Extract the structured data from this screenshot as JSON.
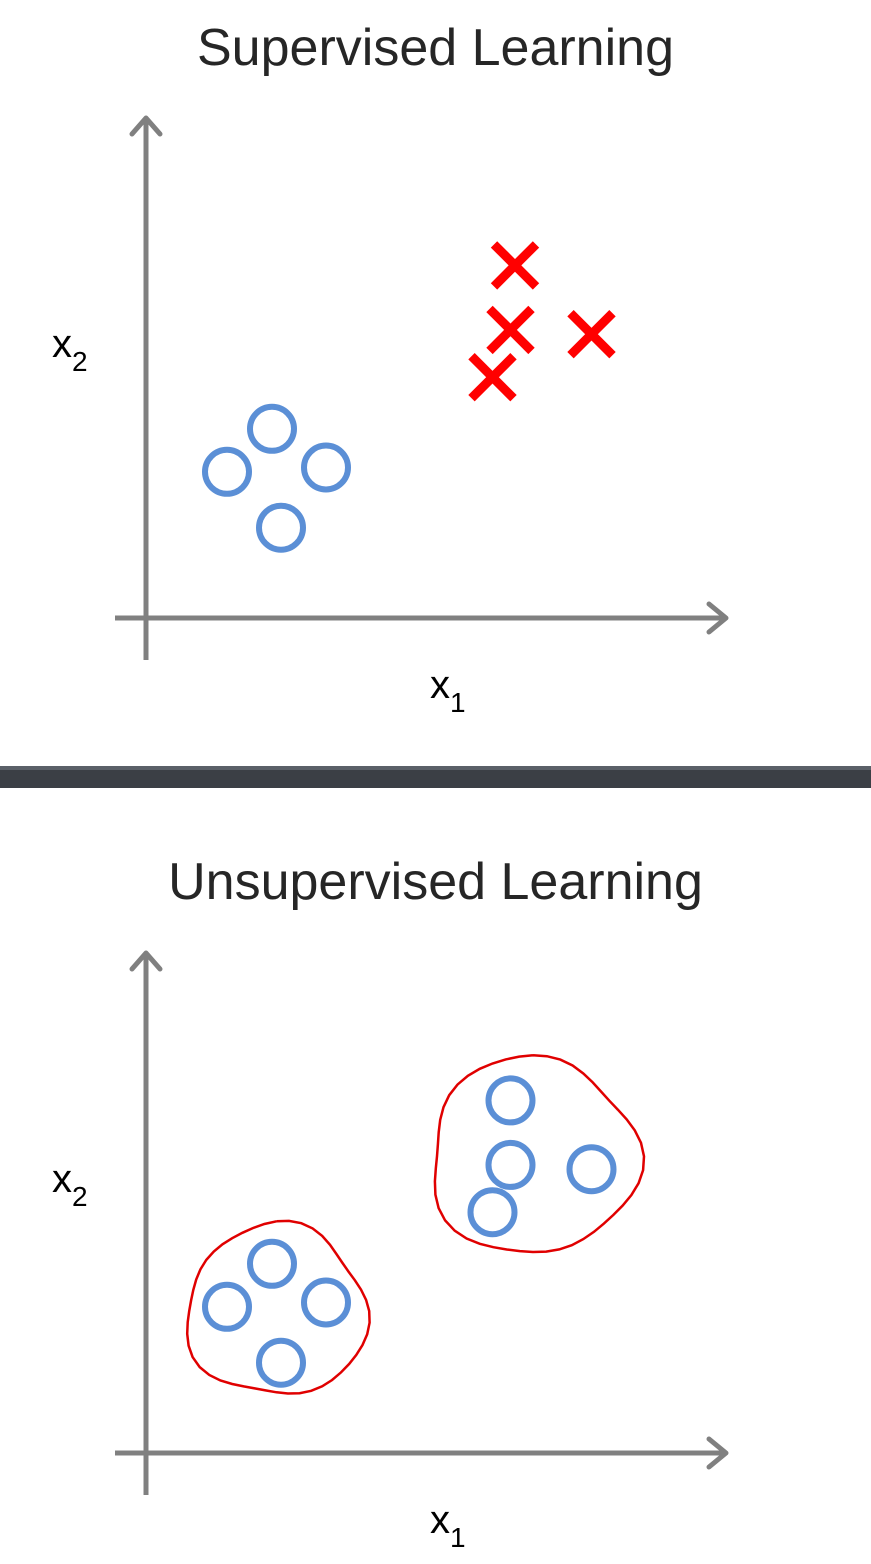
{
  "chart_data": [
    {
      "type": "scatter",
      "title": "Supervised Learning",
      "xlabel": "x",
      "xlabel_sub": "1",
      "ylabel": "x",
      "ylabel_sub": "2",
      "grid": false,
      "series": [
        {
          "marker": "circle",
          "color": "#5b8fd6",
          "points": [
            [
              1.4,
              2.2
            ],
            [
              0.9,
              1.7
            ],
            [
              2.0,
              1.75
            ],
            [
              1.5,
              1.05
            ]
          ]
        },
        {
          "marker": "cross",
          "color": "#ff0000",
          "points": [
            [
              4.1,
              4.1
            ],
            [
              4.05,
              3.35
            ],
            [
              4.95,
              3.3
            ],
            [
              3.85,
              2.8
            ]
          ]
        }
      ],
      "xlim": [
        0,
        6
      ],
      "ylim": [
        0,
        5
      ]
    },
    {
      "type": "scatter",
      "title": "Unsupervised Learning",
      "xlabel": "x",
      "xlabel_sub": "1",
      "ylabel": "x",
      "ylabel_sub": "2",
      "grid": false,
      "series": [
        {
          "marker": "circle",
          "color": "#5b8fd6",
          "points": [
            [
              1.4,
              2.2
            ],
            [
              0.9,
              1.7
            ],
            [
              2.0,
              1.75
            ],
            [
              1.5,
              1.05
            ],
            [
              4.05,
              4.1
            ],
            [
              4.05,
              3.35
            ],
            [
              4.95,
              3.3
            ],
            [
              3.85,
              2.8
            ]
          ]
        }
      ],
      "clusters": [
        {
          "color": "#e00000",
          "center": [
            1.45,
            1.65
          ],
          "rx": 1.0,
          "ry": 1.0
        },
        {
          "color": "#e00000",
          "center": [
            4.3,
            3.45
          ],
          "rx": 1.15,
          "ry": 1.15
        }
      ],
      "xlim": [
        0,
        6
      ],
      "ylim": [
        0,
        5
      ]
    }
  ],
  "colors": {
    "axis": "#808080",
    "divider": "#3b3f45"
  }
}
